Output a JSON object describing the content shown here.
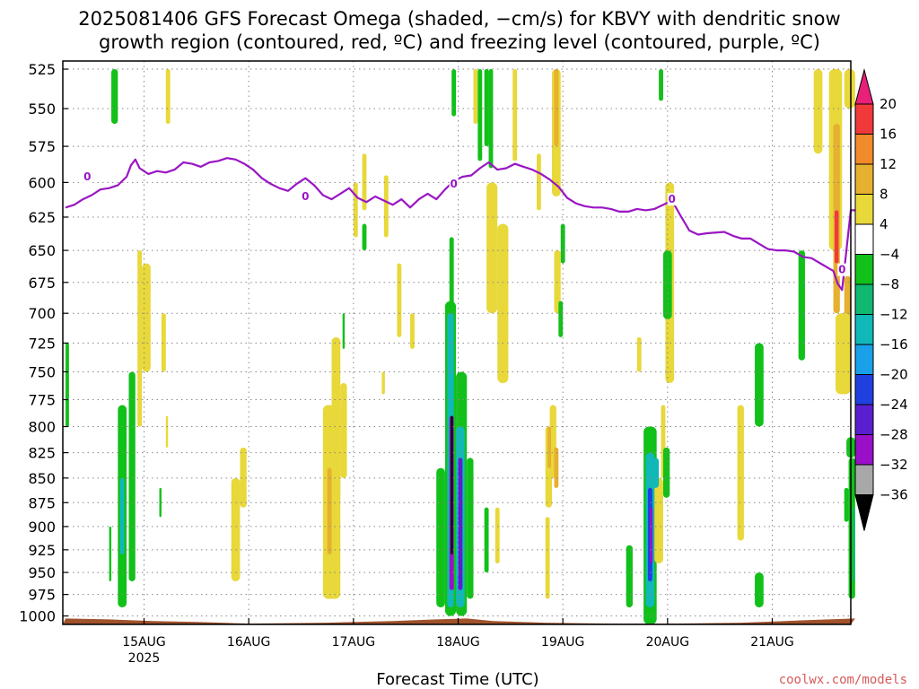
{
  "title_lines": [
    "2025081406 GFS Forecast Omega (shaded, −cm/s) for KBVY with dendritic snow",
    "growth region (contoured, red, ºC) and freezing level (contoured, purple, ºC)"
  ],
  "xlabel": "Forecast Time (UTC)",
  "credit": "coolwx.com/models",
  "colors": {
    "terrain": "#a0522d",
    "freezing_level": "#9a16c4",
    "grid": "#888888"
  },
  "chart_data": {
    "type": "heatmap",
    "title": "2025081406 GFS Forecast Omega (shaded, −cm/s) for KBVY with dendritic snow growth region (contoured, red, ºC) and freezing level (contoured, purple, ºC)",
    "xlabel": "Forecast Time (UTC)",
    "ylabel": "",
    "x_unit": "hours since 2025-08-14 06Z",
    "xlim": [
      0,
      180
    ],
    "ylim": [
      1010,
      520
    ],
    "y_log_pressure": true,
    "x_ticks": [
      {
        "h": 18,
        "label": "15AUG",
        "sub": "2025"
      },
      {
        "h": 42,
        "label": "16AUG",
        "sub": ""
      },
      {
        "h": 66,
        "label": "17AUG",
        "sub": ""
      },
      {
        "h": 90,
        "label": "18AUG",
        "sub": ""
      },
      {
        "h": 114,
        "label": "19AUG",
        "sub": ""
      },
      {
        "h": 138,
        "label": "20AUG",
        "sub": ""
      },
      {
        "h": 162,
        "label": "21AUG",
        "sub": ""
      }
    ],
    "y_ticks": [
      525,
      550,
      575,
      600,
      625,
      650,
      675,
      700,
      725,
      750,
      775,
      800,
      825,
      850,
      875,
      900,
      925,
      950,
      975,
      1000
    ],
    "grid": true,
    "colorbar": {
      "levels": [
        "20",
        "16",
        "12",
        "8",
        "4",
        "−4",
        "−8",
        "−12",
        "−16",
        "−20",
        "−24",
        "−28",
        "−32",
        "−36"
      ],
      "bins": [
        {
          "min": 16,
          "max": 20,
          "color": "#f03a3a"
        },
        {
          "min": 12,
          "max": 16,
          "color": "#f08a2a"
        },
        {
          "min": 8,
          "max": 12,
          "color": "#e6b030"
        },
        {
          "min": 4,
          "max": 8,
          "color": "#e8d83a"
        },
        {
          "min": -4,
          "max": 4,
          "color": "#ffffff"
        },
        {
          "min": -8,
          "max": -4,
          "color": "#12c01a"
        },
        {
          "min": -12,
          "max": -8,
          "color": "#10b870"
        },
        {
          "min": -16,
          "max": -12,
          "color": "#10b8b8"
        },
        {
          "min": -20,
          "max": -16,
          "color": "#1aa0e8"
        },
        {
          "min": -24,
          "max": -20,
          "color": "#2040e0"
        },
        {
          "min": -28,
          "max": -24,
          "color": "#5a20d0"
        },
        {
          "min": -32,
          "max": -28,
          "color": "#9a10c8"
        },
        {
          "min": -36,
          "max": -32,
          "color": "#a8a8a8"
        }
      ],
      "top_arrow_color": "#e8207a",
      "bottom_arrow_color": "#000000"
    },
    "freezing_level": {
      "label": "0",
      "label_points": [
        [
          5,
          596
        ],
        [
          55,
          610
        ],
        [
          89,
          601
        ],
        [
          139,
          612
        ],
        [
          178,
          665
        ]
      ],
      "points": [
        [
          0,
          618
        ],
        [
          2,
          616
        ],
        [
          4,
          612
        ],
        [
          6,
          609
        ],
        [
          8,
          605
        ],
        [
          10,
          604
        ],
        [
          12,
          602
        ],
        [
          14,
          596
        ],
        [
          15,
          588
        ],
        [
          16,
          584
        ],
        [
          17,
          590
        ],
        [
          19,
          594
        ],
        [
          21,
          592
        ],
        [
          23,
          593
        ],
        [
          25,
          591
        ],
        [
          27,
          586
        ],
        [
          29,
          587
        ],
        [
          31,
          589
        ],
        [
          33,
          586
        ],
        [
          35,
          585
        ],
        [
          37,
          583
        ],
        [
          39,
          584
        ],
        [
          41,
          587
        ],
        [
          43,
          591
        ],
        [
          45,
          597
        ],
        [
          47,
          601
        ],
        [
          49,
          604
        ],
        [
          51,
          606
        ],
        [
          53,
          601
        ],
        [
          55,
          597
        ],
        [
          57,
          602
        ],
        [
          59,
          609
        ],
        [
          61,
          612
        ],
        [
          63,
          608
        ],
        [
          65,
          604
        ],
        [
          67,
          611
        ],
        [
          69,
          614
        ],
        [
          71,
          610
        ],
        [
          73,
          613
        ],
        [
          75,
          616
        ],
        [
          77,
          612
        ],
        [
          79,
          618
        ],
        [
          81,
          612
        ],
        [
          83,
          608
        ],
        [
          85,
          612
        ],
        [
          87,
          605
        ],
        [
          89,
          599
        ],
        [
          91,
          596
        ],
        [
          93,
          595
        ],
        [
          95,
          590
        ],
        [
          97,
          586
        ],
        [
          99,
          591
        ],
        [
          101,
          590
        ],
        [
          103,
          587
        ],
        [
          105,
          589
        ],
        [
          107,
          591
        ],
        [
          109,
          594
        ],
        [
          111,
          598
        ],
        [
          113,
          603
        ],
        [
          115,
          611
        ],
        [
          117,
          615
        ],
        [
          119,
          617
        ],
        [
          121,
          618
        ],
        [
          123,
          618
        ],
        [
          125,
          619
        ],
        [
          127,
          621
        ],
        [
          129,
          621
        ],
        [
          131,
          619
        ],
        [
          133,
          620
        ],
        [
          135,
          619
        ],
        [
          137,
          616
        ],
        [
          139,
          613
        ],
        [
          141,
          624
        ],
        [
          143,
          635
        ],
        [
          145,
          638
        ],
        [
          147,
          637
        ],
        [
          151,
          636
        ],
        [
          153,
          639
        ],
        [
          155,
          641
        ],
        [
          157,
          641
        ],
        [
          159,
          645
        ],
        [
          161,
          649
        ],
        [
          163,
          650
        ],
        [
          165,
          650
        ],
        [
          167,
          651
        ],
        [
          169,
          655
        ],
        [
          171,
          656
        ],
        [
          173,
          660
        ],
        [
          175,
          664
        ],
        [
          176,
          666
        ],
        [
          177,
          676
        ],
        [
          178,
          681
        ],
        [
          179,
          650
        ],
        [
          180,
          620
        ],
        [
          181,
          620
        ]
      ]
    },
    "regions": [
      {
        "x0": 10.5,
        "x1": 12.0,
        "p0": 525,
        "p1": 560,
        "v": -6
      },
      {
        "x0": 23.0,
        "x1": 24.0,
        "p0": 525,
        "p1": 560,
        "v": 6
      },
      {
        "x0": 88.5,
        "x1": 89.5,
        "p0": 525,
        "p1": 555,
        "v": -6
      },
      {
        "x0": 93.5,
        "x1": 94.5,
        "p0": 525,
        "p1": 560,
        "v": 6
      },
      {
        "x0": 94.5,
        "x1": 95.5,
        "p0": 525,
        "p1": 585,
        "v": -6
      },
      {
        "x0": 96.0,
        "x1": 97.0,
        "p0": 525,
        "p1": 575,
        "v": -6
      },
      {
        "x0": 97.0,
        "x1": 98.0,
        "p0": 525,
        "p1": 590,
        "v": -6
      },
      {
        "x0": 102.5,
        "x1": 103.5,
        "p0": 525,
        "p1": 585,
        "v": 6
      },
      {
        "x0": 111.5,
        "x1": 113.5,
        "p0": 525,
        "p1": 610,
        "v": 6
      },
      {
        "x0": 112.0,
        "x1": 113.0,
        "p0": 525,
        "p1": 575,
        "v": 10
      },
      {
        "x0": 136.0,
        "x1": 137.0,
        "p0": 525,
        "p1": 545,
        "v": -6
      },
      {
        "x0": 171.5,
        "x1": 173.5,
        "p0": 525,
        "p1": 580,
        "v": 6
      },
      {
        "x0": 175.0,
        "x1": 178.0,
        "p0": 525,
        "p1": 650,
        "v": 6
      },
      {
        "x0": 178.5,
        "x1": 181.0,
        "p0": 525,
        "p1": 550,
        "v": 6
      },
      {
        "x0": 176.0,
        "x1": 177.5,
        "p0": 560,
        "p1": 700,
        "v": 10
      },
      {
        "x0": 176.3,
        "x1": 177.2,
        "p0": 620,
        "p1": 660,
        "v": 18
      },
      {
        "x0": 178.5,
        "x1": 180.0,
        "p0": 670,
        "p1": 730,
        "v": 10
      },
      {
        "x0": 176.5,
        "x1": 180.0,
        "p0": 700,
        "p1": 770,
        "v": 6
      },
      {
        "x0": 66.0,
        "x1": 67.0,
        "p0": 600,
        "p1": 640,
        "v": 6
      },
      {
        "x0": 68.0,
        "x1": 69.0,
        "p0": 630,
        "p1": 650,
        "v": -6
      },
      {
        "x0": 68.0,
        "x1": 69.0,
        "p0": 580,
        "p1": 620,
        "v": 6
      },
      {
        "x0": 73.0,
        "x1": 74.0,
        "p0": 595,
        "p1": 640,
        "v": 6
      },
      {
        "x0": 96.5,
        "x1": 99.0,
        "p0": 600,
        "p1": 700,
        "v": 6
      },
      {
        "x0": 99.0,
        "x1": 101.5,
        "p0": 630,
        "p1": 760,
        "v": 6
      },
      {
        "x0": 108.0,
        "x1": 109.0,
        "p0": 580,
        "p1": 620,
        "v": 6
      },
      {
        "x0": 113.5,
        "x1": 114.5,
        "p0": 630,
        "p1": 660,
        "v": -6
      },
      {
        "x0": 137.5,
        "x1": 139.5,
        "p0": 600,
        "p1": 760,
        "v": 6
      },
      {
        "x0": 137.0,
        "x1": 139.0,
        "p0": 650,
        "p1": 705,
        "v": -6
      },
      {
        "x0": 112.0,
        "x1": 113.5,
        "p0": 650,
        "p1": 700,
        "v": 6
      },
      {
        "x0": 113.0,
        "x1": 114.0,
        "p0": 690,
        "p1": 720,
        "v": -6
      },
      {
        "x0": 16.5,
        "x1": 17.5,
        "p0": 650,
        "p1": 800,
        "v": 6
      },
      {
        "x0": 17.5,
        "x1": 19.5,
        "p0": 660,
        "p1": 750,
        "v": 6
      },
      {
        "x0": 22.0,
        "x1": 23.0,
        "p0": 700,
        "p1": 750,
        "v": 6
      },
      {
        "x0": 0.0,
        "x1": 0.8,
        "p0": 725,
        "p1": 800,
        "v": -6
      },
      {
        "x0": 12.0,
        "x1": 14.0,
        "p0": 780,
        "p1": 990,
        "v": -6
      },
      {
        "x0": 12.5,
        "x1": 13.5,
        "p0": 850,
        "p1": 930,
        "v": -14
      },
      {
        "x0": 14.5,
        "x1": 16.0,
        "p0": 750,
        "p1": 960,
        "v": -6
      },
      {
        "x0": 10.0,
        "x1": 10.5,
        "p0": 900,
        "p1": 960,
        "v": -6
      },
      {
        "x0": 21.5,
        "x1": 22.0,
        "p0": 860,
        "p1": 890,
        "v": -6
      },
      {
        "x0": 23.0,
        "x1": 23.5,
        "p0": 790,
        "p1": 820,
        "v": 6
      },
      {
        "x0": 38.0,
        "x1": 40.0,
        "p0": 850,
        "p1": 960,
        "v": 6
      },
      {
        "x0": 40.0,
        "x1": 41.5,
        "p0": 820,
        "p1": 880,
        "v": 6
      },
      {
        "x0": 61.0,
        "x1": 63.0,
        "p0": 720,
        "p1": 870,
        "v": 6
      },
      {
        "x0": 59.0,
        "x1": 63.0,
        "p0": 780,
        "p1": 980,
        "v": 6
      },
      {
        "x0": 60.0,
        "x1": 61.0,
        "p0": 840,
        "p1": 930,
        "v": 10
      },
      {
        "x0": 63.0,
        "x1": 64.5,
        "p0": 760,
        "p1": 850,
        "v": 6
      },
      {
        "x0": 63.5,
        "x1": 64.0,
        "p0": 700,
        "p1": 730,
        "v": -6
      },
      {
        "x0": 72.5,
        "x1": 73.2,
        "p0": 750,
        "p1": 770,
        "v": 6
      },
      {
        "x0": 76.0,
        "x1": 77.0,
        "p0": 660,
        "p1": 720,
        "v": 6
      },
      {
        "x0": 79.0,
        "x1": 80.0,
        "p0": 700,
        "p1": 730,
        "v": 6
      },
      {
        "x0": 88.0,
        "x1": 89.0,
        "p0": 640,
        "p1": 800,
        "v": -6
      },
      {
        "x0": 85.0,
        "x1": 87.0,
        "p0": 840,
        "p1": 990,
        "v": -6
      },
      {
        "x0": 87.0,
        "x1": 89.5,
        "p0": 690,
        "p1": 1000,
        "v": -6
      },
      {
        "x0": 87.5,
        "x1": 89.0,
        "p0": 700,
        "p1": 990,
        "v": -14
      },
      {
        "x0": 88.0,
        "x1": 89.0,
        "p0": 790,
        "p1": 970,
        "v": -30
      },
      {
        "x0": 88.3,
        "x1": 88.8,
        "p0": 790,
        "p1": 930,
        "v": -40
      },
      {
        "x0": 89.5,
        "x1": 92.0,
        "p0": 750,
        "p1": 1000,
        "v": -6
      },
      {
        "x0": 89.5,
        "x1": 91.5,
        "p0": 800,
        "p1": 990,
        "v": -14
      },
      {
        "x0": 90.0,
        "x1": 91.0,
        "p0": 830,
        "p1": 970,
        "v": -26
      },
      {
        "x0": 92.0,
        "x1": 93.5,
        "p0": 830,
        "p1": 980,
        "v": -6
      },
      {
        "x0": 96.0,
        "x1": 97.0,
        "p0": 880,
        "p1": 950,
        "v": -6
      },
      {
        "x0": 98.5,
        "x1": 99.5,
        "p0": 880,
        "p1": 940,
        "v": 6
      },
      {
        "x0": 110.0,
        "x1": 111.5,
        "p0": 800,
        "p1": 880,
        "v": 6
      },
      {
        "x0": 111.0,
        "x1": 112.5,
        "p0": 780,
        "p1": 850,
        "v": 6
      },
      {
        "x0": 110.5,
        "x1": 111.3,
        "p0": 800,
        "p1": 840,
        "v": 10
      },
      {
        "x0": 110.0,
        "x1": 111.0,
        "p0": 890,
        "p1": 980,
        "v": 6
      },
      {
        "x0": 132.5,
        "x1": 135.5,
        "p0": 800,
        "p1": 1010,
        "v": -6
      },
      {
        "x0": 133.0,
        "x1": 135.0,
        "p0": 825,
        "p1": 990,
        "v": -14
      },
      {
        "x0": 133.5,
        "x1": 134.5,
        "p0": 860,
        "p1": 960,
        "v": -24
      },
      {
        "x0": 134.0,
        "x1": 134.6,
        "p0": 880,
        "p1": 940,
        "v": -30
      },
      {
        "x0": 128.5,
        "x1": 130.0,
        "p0": 920,
        "p1": 990,
        "v": -6
      },
      {
        "x0": 131.0,
        "x1": 132.0,
        "p0": 720,
        "p1": 750,
        "v": 6
      },
      {
        "x0": 136.5,
        "x1": 137.5,
        "p0": 780,
        "p1": 850,
        "v": 6
      },
      {
        "x0": 137.0,
        "x1": 138.5,
        "p0": 820,
        "p1": 870,
        "v": -6
      },
      {
        "x0": 135.0,
        "x1": 137.0,
        "p0": 850,
        "p1": 940,
        "v": 6
      },
      {
        "x0": 134.5,
        "x1": 136.0,
        "p0": 830,
        "p1": 860,
        "v": -14
      },
      {
        "x0": 154.0,
        "x1": 155.5,
        "p0": 780,
        "p1": 915,
        "v": 6
      },
      {
        "x0": 158.0,
        "x1": 160.0,
        "p0": 725,
        "p1": 800,
        "v": -6
      },
      {
        "x0": 158.0,
        "x1": 160.0,
        "p0": 950,
        "p1": 990,
        "v": -6
      },
      {
        "x0": 168.0,
        "x1": 169.5,
        "p0": 650,
        "p1": 740,
        "v": -6
      },
      {
        "x0": 178.5,
        "x1": 179.5,
        "p0": 860,
        "p1": 895,
        "v": -6
      },
      {
        "x0": 179.5,
        "x1": 181.0,
        "p0": 830,
        "p1": 980,
        "v": -6
      },
      {
        "x0": 180.5,
        "x1": 181.0,
        "p0": 880,
        "p1": 960,
        "v": -10
      },
      {
        "x0": 179.0,
        "x1": 181.0,
        "p0": 810,
        "p1": 830,
        "v": -6
      },
      {
        "x0": 112.0,
        "x1": 113.0,
        "p0": 820,
        "p1": 860,
        "v": 10
      }
    ],
    "terrain": [
      [
        0,
        1003
      ],
      [
        10,
        1004
      ],
      [
        20,
        1006
      ],
      [
        30,
        1007
      ],
      [
        42,
        1009
      ],
      [
        60,
        1008
      ],
      [
        75,
        1006
      ],
      [
        85,
        1004
      ],
      [
        92,
        1003
      ],
      [
        98,
        1006
      ],
      [
        110,
        1008
      ],
      [
        125,
        1009
      ],
      [
        140,
        1009
      ],
      [
        155,
        1008
      ],
      [
        165,
        1006
      ],
      [
        175,
        1004
      ],
      [
        181,
        1003
      ]
    ]
  }
}
